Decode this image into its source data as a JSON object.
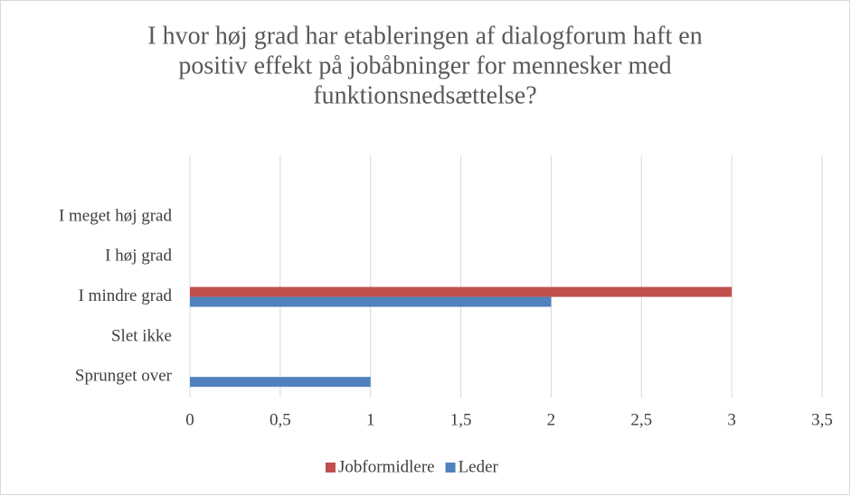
{
  "chart_data": {
    "type": "hbar",
    "title": [
      "I hvor høj grad har etableringen af dialogforum haft en",
      "positiv effekt på jobåbninger for mennesker med",
      "funktionsnedsættelse?"
    ],
    "categories": [
      "I meget høj grad",
      "I høj grad",
      "I mindre grad",
      "Slet ikke",
      "Sprunget over"
    ],
    "series": [
      {
        "name": "Jobformidlere",
        "color": "#c0504d",
        "values": [
          0,
          0,
          3,
          0,
          0
        ]
      },
      {
        "name": "Leder",
        "color": "#4f81bd",
        "values": [
          0,
          0,
          2,
          0,
          1
        ]
      }
    ],
    "xlim": [
      0,
      3.5
    ],
    "xticks": [
      0,
      {
        "value": 0.5,
        "label": "0,5"
      },
      1,
      {
        "value": 1.5,
        "label": "1,5"
      },
      2,
      {
        "value": 2.5,
        "label": "2,5"
      },
      3,
      {
        "value": 3.5,
        "label": "3,5"
      }
    ],
    "grid": true,
    "legend": "bottom"
  }
}
